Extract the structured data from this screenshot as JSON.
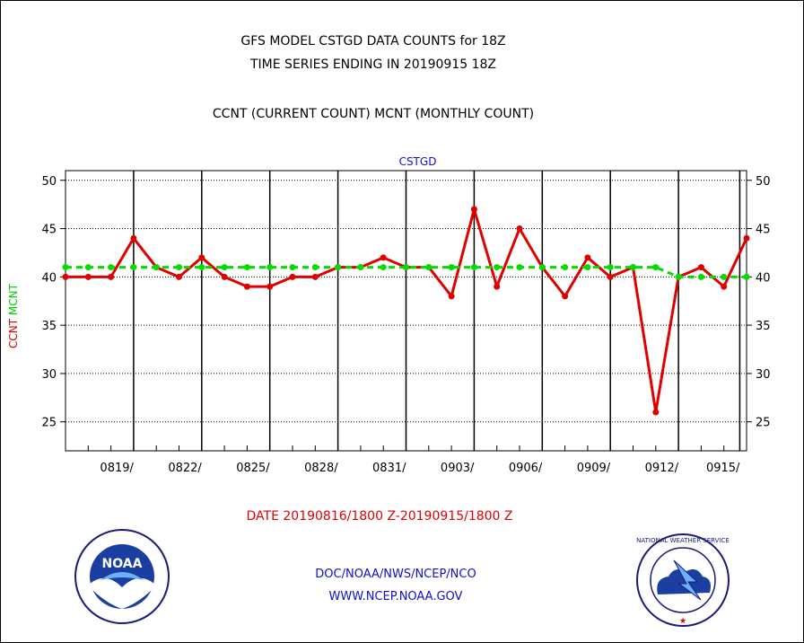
{
  "header": {
    "title_line1": "GFS MODEL CSTGD DATA COUNTS for 18Z",
    "title_line2": "TIME SERIES ENDING IN 20190915 18Z",
    "subtitle": "CCNT (CURRENT COUNT) MCNT (MONTHLY COUNT)"
  },
  "chart_data": {
    "type": "line",
    "title": "CSTGD",
    "ylabel_series1": "CCNT",
    "ylabel_series2": "MCNT",
    "xlabel": "DATE 20190816/1800 Z-20190915/1800 Z",
    "ylim": [
      22,
      51
    ],
    "yticks": [
      25,
      30,
      35,
      40,
      45,
      50
    ],
    "x_start_day": 0,
    "x_end_day": 30,
    "xticks": [
      {
        "day": 3,
        "label": "0819/"
      },
      {
        "day": 6,
        "label": "0822/"
      },
      {
        "day": 9,
        "label": "0825/"
      },
      {
        "day": 12,
        "label": "0828/"
      },
      {
        "day": 15,
        "label": "0831/"
      },
      {
        "day": 18,
        "label": "0903/"
      },
      {
        "day": 21,
        "label": "0906/"
      },
      {
        "day": 24,
        "label": "0909/"
      },
      {
        "day": 27,
        "label": "0912/"
      },
      {
        "day": 29.7,
        "label": "0915/"
      }
    ],
    "grid": true,
    "series": [
      {
        "name": "CCNT",
        "color": "#e00000",
        "style": "solid",
        "x": [
          0,
          1,
          2,
          3,
          4,
          5,
          6,
          7,
          8,
          9,
          10,
          11,
          12,
          13,
          14,
          15,
          16,
          17,
          18,
          19,
          20,
          21,
          22,
          23,
          24,
          25,
          26,
          27,
          28,
          29,
          30
        ],
        "values": [
          40,
          40,
          40,
          44,
          41,
          40,
          42,
          40,
          39,
          39,
          40,
          40,
          41,
          41,
          42,
          41,
          41,
          38,
          47,
          39,
          45,
          41,
          38,
          42,
          40,
          41,
          26,
          40,
          41,
          39,
          44
        ]
      },
      {
        "name": "MCNT",
        "color": "#00dd00",
        "style": "dashed",
        "x": [
          0,
          1,
          2,
          3,
          4,
          5,
          6,
          7,
          8,
          9,
          10,
          11,
          12,
          13,
          14,
          15,
          16,
          17,
          18,
          19,
          20,
          21,
          22,
          23,
          24,
          25,
          26,
          27,
          28,
          29,
          30
        ],
        "values": [
          41,
          41,
          41,
          41,
          41,
          41,
          41,
          41,
          41,
          41,
          41,
          41,
          41,
          41,
          41,
          41,
          41,
          41,
          41,
          41,
          41,
          41,
          41,
          41,
          41,
          41,
          41,
          40,
          40,
          40,
          40
        ]
      }
    ]
  },
  "footer": {
    "line1": "DOC/NOAA/NWS/NCEP/NCO",
    "line2": "WWW.NCEP.NOAA.GOV"
  },
  "logos": {
    "noaa_text": "NOAA",
    "nws_text": "NATIONAL WEATHER SERVICE"
  }
}
